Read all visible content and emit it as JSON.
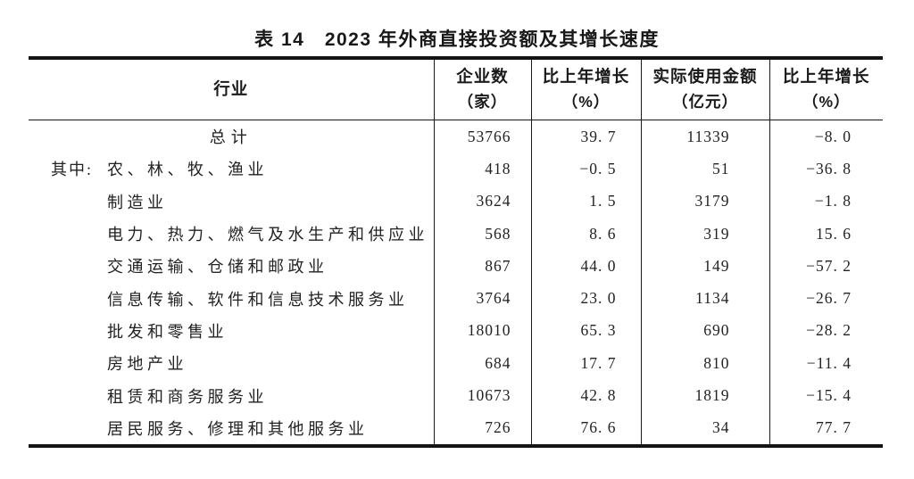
{
  "table": {
    "title": "表 14　2023 年外商直接投资额及其增长速度",
    "header": {
      "industry": "行业",
      "enterprises_line1": "企业数",
      "enterprises_line2": "（家）",
      "growth1_line1": "比上年增长",
      "growth1_line2": "（%）",
      "amount_line1": "实际使用金额",
      "amount_line2": "（亿元）",
      "growth2_line1": "比上年增长",
      "growth2_line2": "（%）"
    },
    "rows": [
      {
        "prefix": "",
        "industry": "总计",
        "enterprises": "53766",
        "growth1": "39. 7",
        "amount": "11339",
        "growth2": "−8. 0"
      },
      {
        "prefix": "其中:",
        "industry": "农、林、牧、渔业",
        "enterprises": "418",
        "growth1": "−0. 5",
        "amount": "51",
        "growth2": "−36. 8"
      },
      {
        "prefix": "",
        "industry": "制造业",
        "enterprises": "3624",
        "growth1": "1. 5",
        "amount": "3179",
        "growth2": "−1. 8"
      },
      {
        "prefix": "",
        "industry": "电力、热力、燃气及水生产和供应业",
        "enterprises": "568",
        "growth1": "8. 6",
        "amount": "319",
        "growth2": "15. 6"
      },
      {
        "prefix": "",
        "industry": "交通运输、仓储和邮政业",
        "enterprises": "867",
        "growth1": "44. 0",
        "amount": "149",
        "growth2": "−57. 2"
      },
      {
        "prefix": "",
        "industry": "信息传输、软件和信息技术服务业",
        "enterprises": "3764",
        "growth1": "23. 0",
        "amount": "1134",
        "growth2": "−26. 7"
      },
      {
        "prefix": "",
        "industry": "批发和零售业",
        "enterprises": "18010",
        "growth1": "65. 3",
        "amount": "690",
        "growth2": "−28. 2"
      },
      {
        "prefix": "",
        "industry": "房地产业",
        "enterprises": "684",
        "growth1": "17. 7",
        "amount": "810",
        "growth2": "−11. 4"
      },
      {
        "prefix": "",
        "industry": "租赁和商务服务业",
        "enterprises": "10673",
        "growth1": "42. 8",
        "amount": "1819",
        "growth2": "−15. 4"
      },
      {
        "prefix": "",
        "industry": "居民服务、修理和其他服务业",
        "enterprises": "726",
        "growth1": "76. 6",
        "amount": "34",
        "growth2": "77. 7"
      }
    ],
    "line_color": "#141414",
    "background_color": "#ffffff"
  }
}
